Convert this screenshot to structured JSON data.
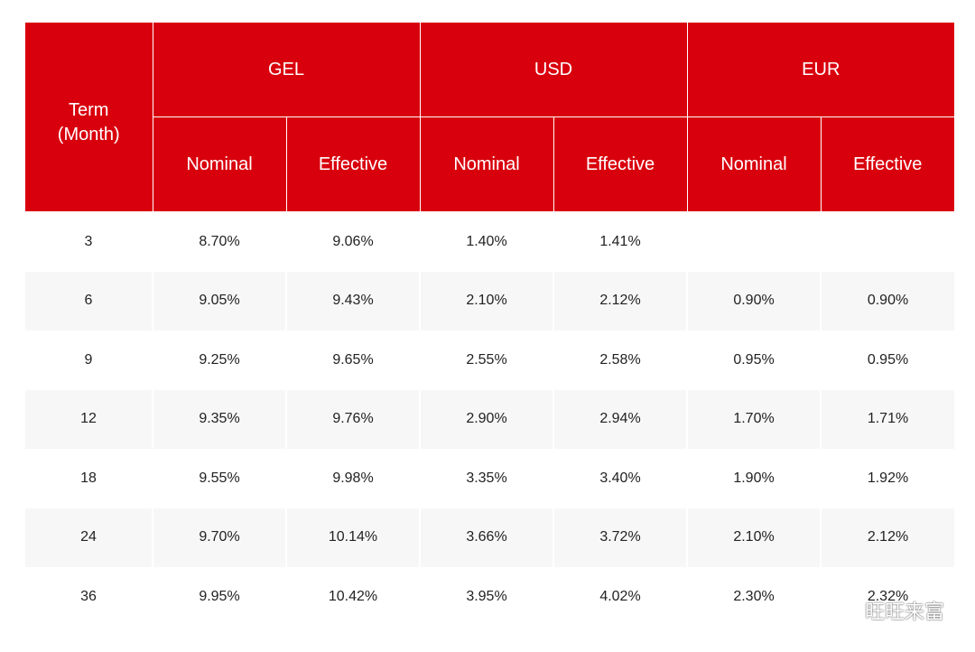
{
  "table": {
    "term_header": "Term",
    "term_header_unit": "(Month)",
    "currencies": [
      "GEL",
      "USD",
      "EUR"
    ],
    "sub_headers": [
      "Nominal",
      "Effective",
      "Nominal",
      "Effective",
      "Nominal",
      "Effective"
    ],
    "rows": [
      [
        "3",
        "8.70%",
        "9.06%",
        "1.40%",
        "1.41%",
        "",
        ""
      ],
      [
        "6",
        "9.05%",
        "9.43%",
        "2.10%",
        "2.12%",
        "0.90%",
        "0.90%"
      ],
      [
        "9",
        "9.25%",
        "9.65%",
        "2.55%",
        "2.58%",
        "0.95%",
        "0.95%"
      ],
      [
        "12",
        "9.35%",
        "9.76%",
        "2.90%",
        "2.94%",
        "1.70%",
        "1.71%"
      ],
      [
        "18",
        "9.55%",
        "9.98%",
        "3.35%",
        "3.40%",
        "1.90%",
        "1.92%"
      ],
      [
        "24",
        "9.70%",
        "10.14%",
        "3.66%",
        "3.72%",
        "2.10%",
        "2.12%"
      ],
      [
        "36",
        "9.95%",
        "10.42%",
        "3.95%",
        "4.02%",
        "2.30%",
        "2.32%"
      ]
    ]
  },
  "watermark": {
    "text": "旺旺来富",
    "icon": "wechat-icon"
  },
  "colors": {
    "header_bg": "#d9000d",
    "header_text": "#ffffff",
    "row_alt_bg": "#f7f7f7",
    "body_text": "#222222"
  }
}
